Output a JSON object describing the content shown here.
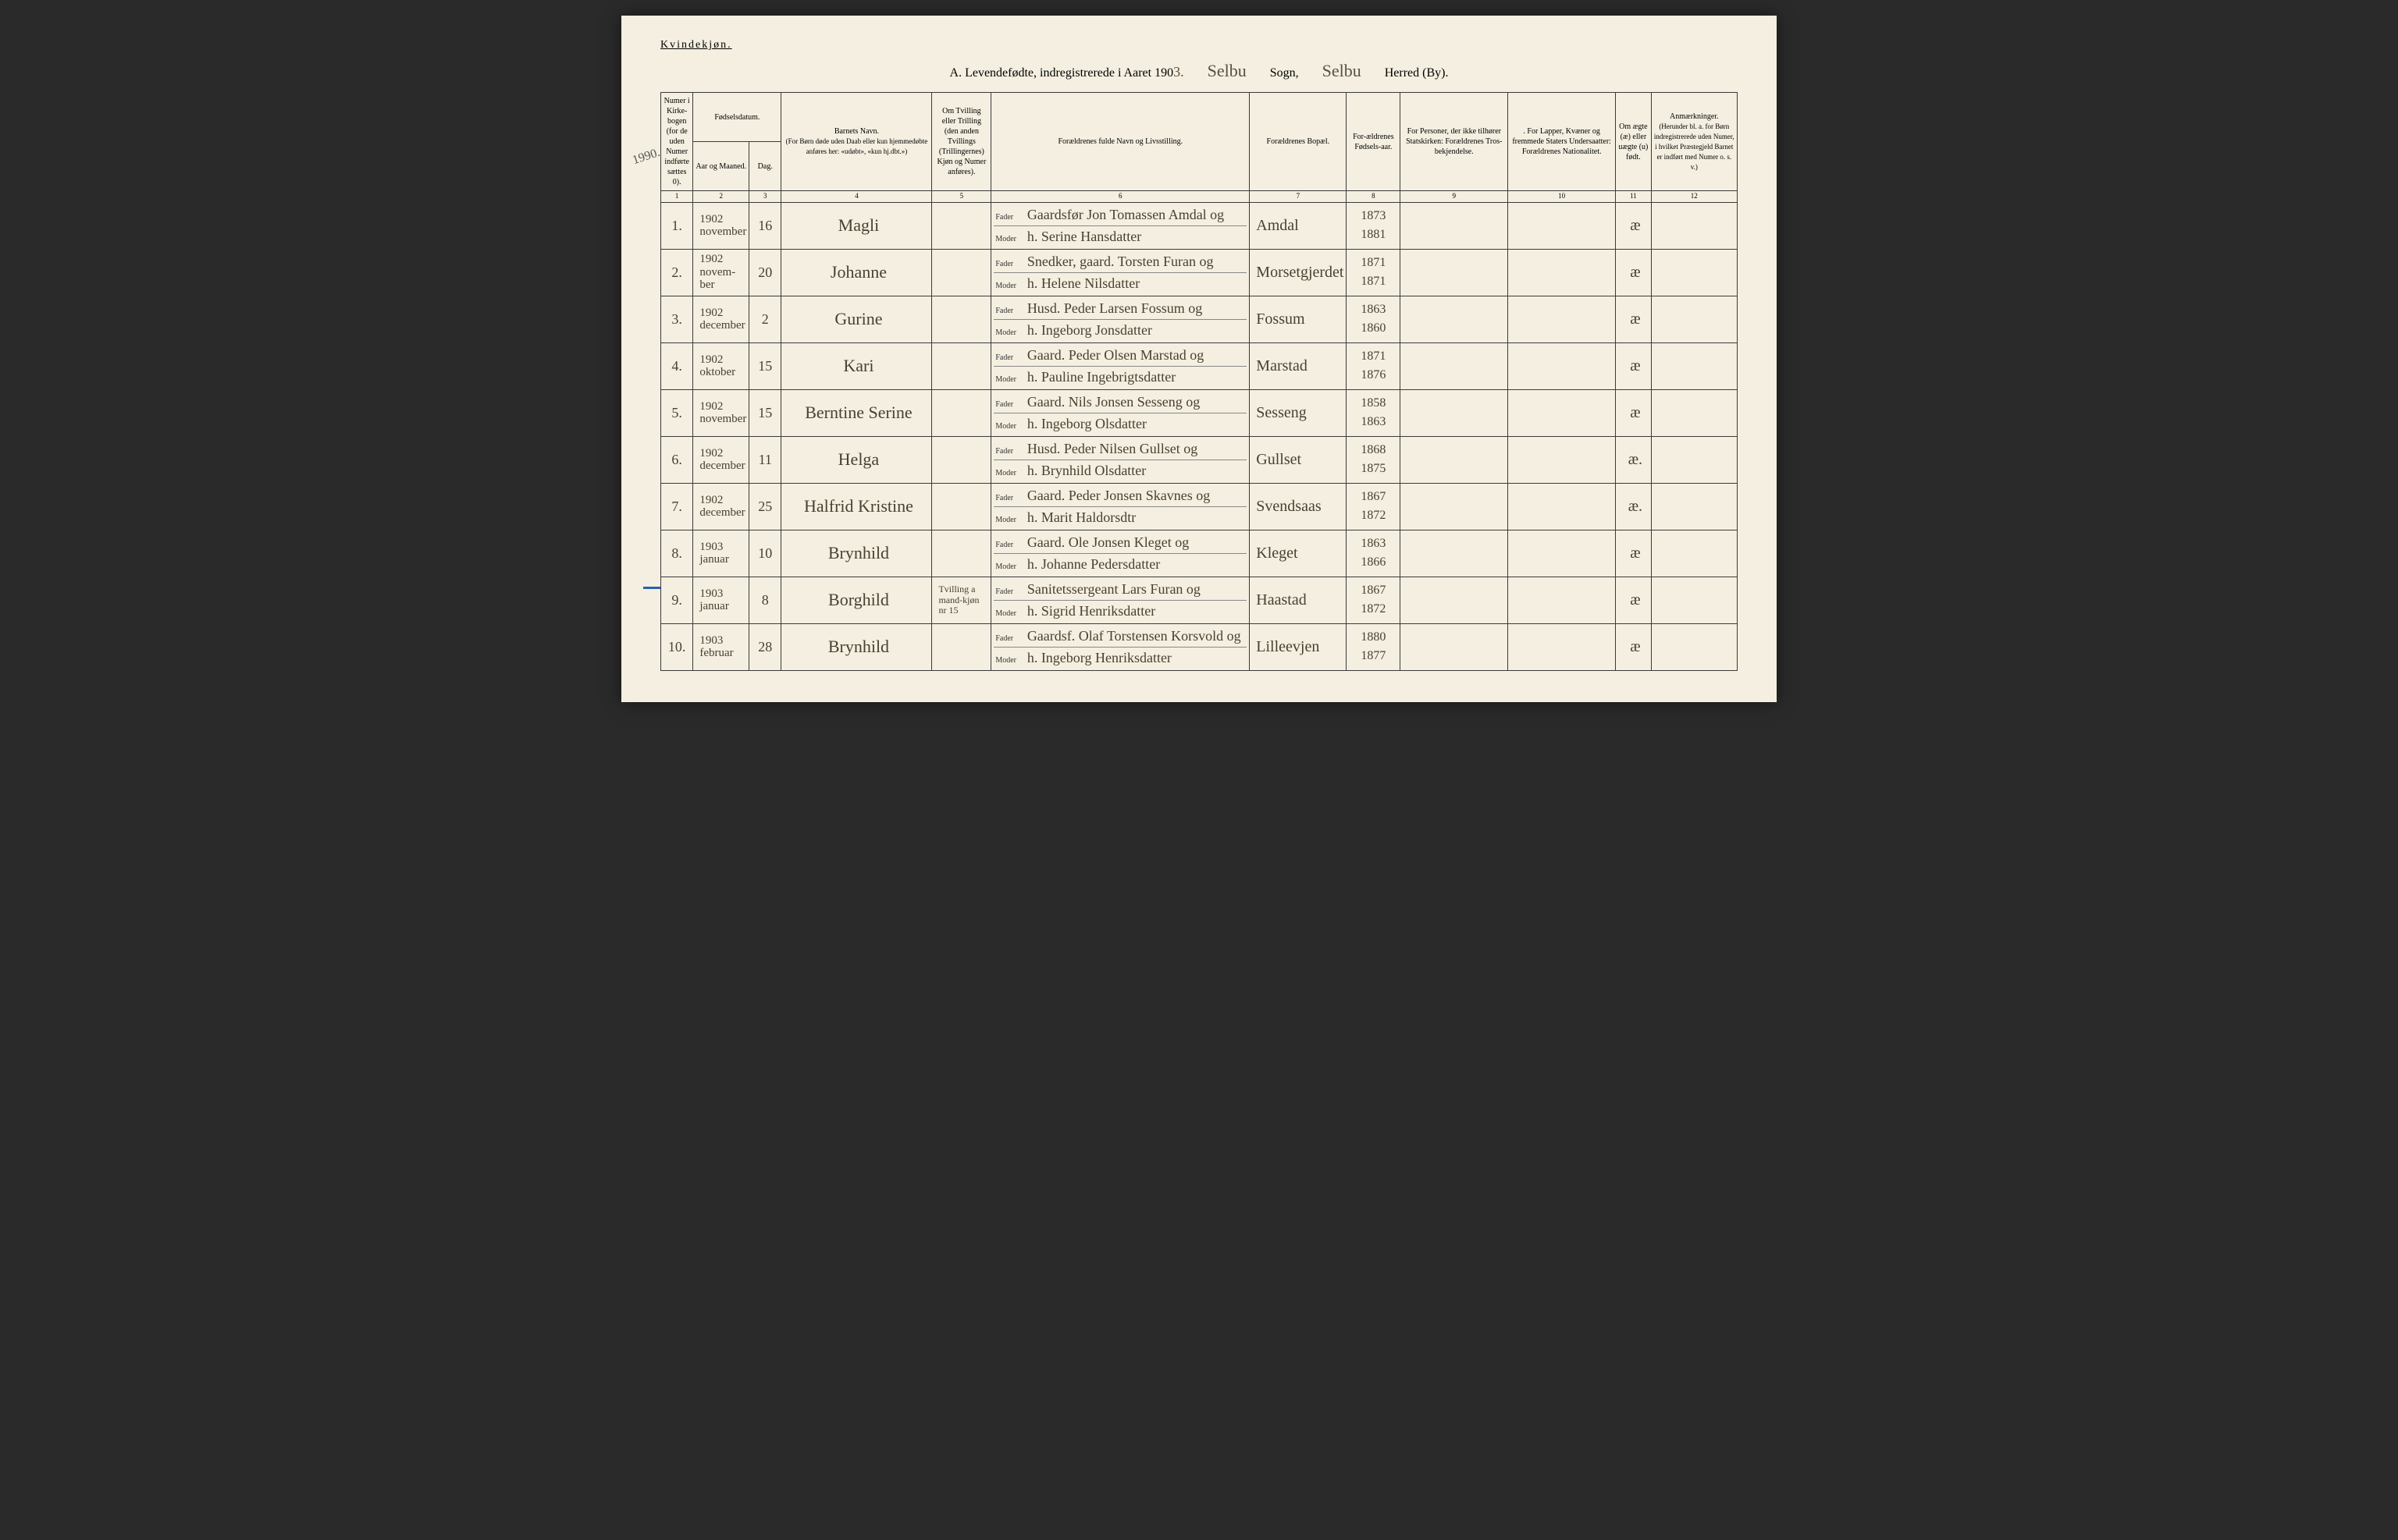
{
  "gender_label": "Kvindekjøn.",
  "title_prefix": "A.  Levendefødte, indregistrerede i Aaret 190",
  "year_suffix": "3.",
  "sogn_value": "Selbu",
  "sogn_label": "Sogn,",
  "herred_value": "Selbu",
  "herred_label": "Herred (By).",
  "margin_note_1": "1990.",
  "columns": {
    "c1": "Numer i Kirke-bogen (for de uden Numer indførte sættes 0).",
    "c2_top": "Fødselsdatum.",
    "c2a": "Aar og Maaned.",
    "c2b": "Dag.",
    "c3": "Barnets Navn.",
    "c3_sub": "(For Børn døde uden Daab eller kun hjemmedøbte anføres her: «udøbt», «kun hj.dbt.»)",
    "c4": "Om Tvilling eller Trilling (den anden Tvillings (Trillingernes) Kjøn og Numer anføres).",
    "c5": "Forældrenes fulde Navn og Livsstilling.",
    "c6": "Forældrenes Bopæl.",
    "c7": "For-ældrenes Fødsels-aar.",
    "c8": "For Personer, der ikke tilhører Statskirken: Forældrenes Tros-bekjendelse.",
    "c9": ". For Lapper, Kvæner og fremmede Staters Undersaatter: Forældrenes Nationalitet.",
    "c10": "Om ægte (æ) eller uægte (u) født.",
    "c11": "Anmærkninger.",
    "c11_sub": "(Herunder bl. a. for Børn indregistrerede uden Numer, i hvilket Præstegjeld Barnet er indført med Numer o. s. v.)"
  },
  "colnums": [
    "1",
    "2",
    "3",
    "4",
    "5",
    "6",
    "7",
    "8",
    "9",
    "10",
    "11",
    "12"
  ],
  "parent_labels": {
    "father": "Fader",
    "mother": "Moder"
  },
  "rows": [
    {
      "num": "1.",
      "year_month": "1902 november",
      "day": "16",
      "name": "Magli",
      "twin": "",
      "father": "Gaardsfør Jon Tomassen Amdal og",
      "mother": "h. Serine Hansdatter",
      "residence": "Amdal",
      "fy": "1873",
      "my": "1881",
      "legit": "æ"
    },
    {
      "num": "2.",
      "year_month": "1902 novem-ber",
      "day": "20",
      "name": "Johanne",
      "twin": "",
      "father": "Snedker, gaard. Torsten Furan og",
      "mother": "h. Helene Nilsdatter",
      "residence": "Morsetgjerdet",
      "fy": "1871",
      "my": "1871",
      "legit": "æ"
    },
    {
      "num": "3.",
      "year_month": "1902 december",
      "day": "2",
      "name": "Gurine",
      "twin": "",
      "father": "Husd. Peder Larsen Fossum og",
      "mother": "h. Ingeborg Jonsdatter",
      "residence": "Fossum",
      "fy": "1863",
      "my": "1860",
      "legit": "æ"
    },
    {
      "num": "4.",
      "year_month": "1902 oktober",
      "day": "15",
      "name": "Kari",
      "twin": "",
      "father": "Gaard. Peder Olsen Marstad og",
      "mother": "h. Pauline Ingebrigtsdatter",
      "residence": "Marstad",
      "fy": "1871",
      "my": "1876",
      "legit": "æ"
    },
    {
      "num": "5.",
      "year_month": "1902 november",
      "day": "15",
      "name": "Berntine Serine",
      "twin": "",
      "father": "Gaard. Nils Jonsen Sesseng og",
      "mother": "h. Ingeborg Olsdatter",
      "residence": "Sesseng",
      "fy": "1858",
      "my": "1863",
      "legit": "æ"
    },
    {
      "num": "6.",
      "year_month": "1902 december",
      "day": "11",
      "name": "Helga",
      "twin": "",
      "father": "Husd. Peder Nilsen Gullset og",
      "mother": "h. Brynhild Olsdatter",
      "residence": "Gullset",
      "fy": "1868",
      "my": "1875",
      "legit": "æ."
    },
    {
      "num": "7.",
      "year_month": "1902 december",
      "day": "25",
      "name": "Halfrid Kristine",
      "twin": "",
      "father": "Gaard. Peder Jonsen Skavnes og",
      "mother": "h. Marit Haldorsdtr",
      "residence": "Svendsaas",
      "fy": "1867",
      "my": "1872",
      "legit": "æ."
    },
    {
      "num": "8.",
      "year_month": "1903 januar",
      "day": "10",
      "name": "Brynhild",
      "twin": "",
      "father": "Gaard. Ole Jonsen Kleget og",
      "mother": "h. Johanne Pedersdatter",
      "residence": "Kleget",
      "fy": "1863",
      "my": "1866",
      "legit": "æ"
    },
    {
      "num": "9.",
      "year_month": "1903 januar",
      "day": "8",
      "name": "Borghild",
      "twin": "Tvilling a mand-kjøn nr 15",
      "father": "Sanitetssergeant Lars Furan og",
      "mother": "h. Sigrid Henriksdatter",
      "residence": "Haastad",
      "fy": "1867",
      "my": "1872",
      "legit": "æ"
    },
    {
      "num": "10.",
      "year_month": "1903 februar",
      "day": "28",
      "name": "Brynhild",
      "twin": "",
      "father": "Gaardsf. Olaf Torstensen Korsvold og",
      "mother": "h. Ingeborg Henriksdatter",
      "residence": "Lilleevjen",
      "fy": "1880",
      "my": "1877",
      "legit": "æ"
    }
  ],
  "layout": {
    "col_widths_pct": [
      3.0,
      5.2,
      3.0,
      14.0,
      5.5,
      24.0,
      9.0,
      5.0,
      10.0,
      10.0,
      3.3,
      8.0
    ]
  },
  "colors": {
    "paper": "#f4efe0",
    "ink": "#3a3a3a",
    "cursive": "#4a4030",
    "blue_mark": "#2a5fb0"
  }
}
